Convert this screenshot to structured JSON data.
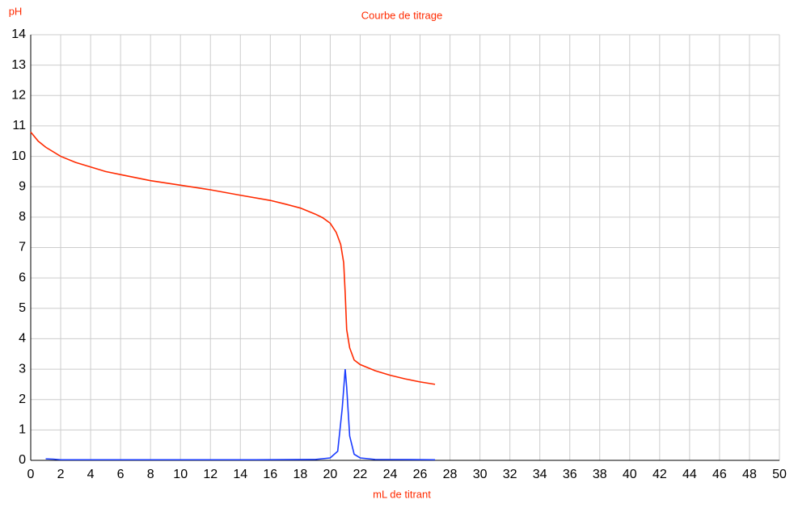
{
  "chart_data": {
    "type": "line",
    "title": "Courbe de titrage",
    "ylabel": "pH",
    "xlabel": "mL de titrant",
    "xlim": [
      0,
      50
    ],
    "ylim": [
      0,
      14
    ],
    "xticks": [
      0,
      2,
      4,
      6,
      8,
      10,
      12,
      14,
      16,
      18,
      20,
      22,
      24,
      26,
      28,
      30,
      32,
      34,
      36,
      38,
      40,
      42,
      44,
      46,
      48,
      50
    ],
    "yticks": [
      0,
      1,
      2,
      3,
      4,
      5,
      6,
      7,
      8,
      9,
      10,
      11,
      12,
      13,
      14
    ],
    "grid": true,
    "series": [
      {
        "color": "#ff2a00",
        "x": [
          0,
          0.5,
          1,
          2,
          3,
          4,
          5,
          6,
          8,
          10,
          12,
          14,
          16,
          17,
          18,
          19,
          19.5,
          20,
          20.4,
          20.7,
          20.9,
          21.0,
          21.1,
          21.3,
          21.6,
          22,
          23,
          24,
          25,
          26,
          27
        ],
        "values": [
          10.8,
          10.5,
          10.3,
          10.0,
          9.8,
          9.65,
          9.5,
          9.4,
          9.2,
          9.05,
          8.9,
          8.72,
          8.55,
          8.43,
          8.3,
          8.1,
          7.98,
          7.8,
          7.5,
          7.1,
          6.5,
          5.5,
          4.3,
          3.7,
          3.3,
          3.15,
          2.95,
          2.8,
          2.68,
          2.58,
          2.5
        ]
      },
      {
        "color": "#1a3cff",
        "x": [
          1,
          1.5,
          2,
          5,
          10,
          15,
          19,
          20,
          20.5,
          20.8,
          21,
          21.1,
          21.3,
          21.6,
          22,
          23,
          27
        ],
        "values": [
          0.05,
          0.04,
          0.02,
          0.02,
          0.02,
          0.02,
          0.03,
          0.08,
          0.3,
          1.7,
          3.0,
          2.4,
          0.8,
          0.2,
          0.08,
          0.03,
          0.02
        ]
      }
    ]
  }
}
